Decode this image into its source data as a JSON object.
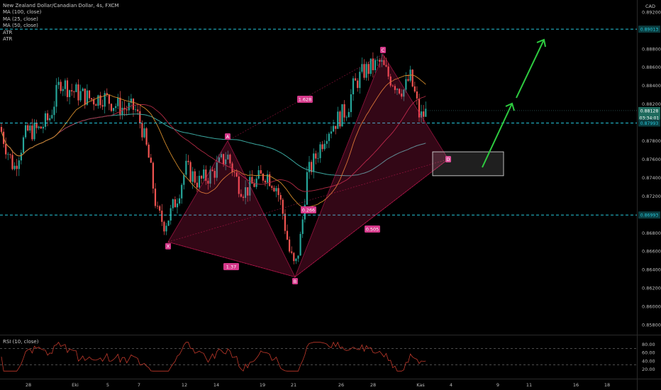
{
  "header": {
    "symbol_line": "New Zealand Dollar/Canadian Dollar, 4s, FXCM",
    "indicators": [
      "MA (100, close)",
      "MA (25, close)",
      "MA (50, close)",
      "ATR",
      "ATR"
    ],
    "currency": "CAD",
    "rsi_label": "RSI (10, close)"
  },
  "price_axis": {
    "labels": [
      "0.89200",
      "0.88800",
      "0.88600",
      "0.88400",
      "0.88200",
      "0.87800",
      "0.87600",
      "0.87400",
      "0.87200",
      "0.86800",
      "0.86600",
      "0.86400",
      "0.86200",
      "0.86000",
      "0.85800"
    ],
    "badges": {
      "upper_line": "0.89013",
      "current": "0.88128",
      "countdown": "03:34:01",
      "mid_line": "0.87993",
      "lower_line": "0.86993"
    }
  },
  "rsi_axis": {
    "labels": [
      "80.00",
      "60.00",
      "40.00",
      "20.00"
    ]
  },
  "time_axis": {
    "labels": [
      "28",
      "Eki",
      "5",
      "7",
      "12",
      "14",
      "19",
      "21",
      "26",
      "28",
      "Kas",
      "4",
      "9",
      "11",
      "16",
      "18"
    ]
  },
  "pattern": {
    "points": {
      "X": "X",
      "A": "A",
      "B": "B",
      "C": "C",
      "D": "D"
    },
    "ratios": {
      "xb": "1.37",
      "ab": "0.266",
      "bc": "1.628",
      "bd": "0.505"
    }
  },
  "colors": {
    "background": "#000000",
    "bull_candle": "#26a69a",
    "bear_candle": "#ef5350",
    "pattern_fill": "#e91e63",
    "label_bg": "#d5388a",
    "support_line": "#26c6da",
    "arrow": "#2ecc40",
    "ma100": "#3ba8a0",
    "ma25": "#d28a2a",
    "ma50": "#b02a44",
    "rsi_line": "#c0392b"
  },
  "chart_data": {
    "type": "candlestick",
    "title": "New Zealand Dollar/Canadian Dollar, 4s, FXCM",
    "ylim": [
      0.857,
      0.8933
    ],
    "horizontal_levels": [
      0.89013,
      0.87993,
      0.86993
    ],
    "current_price": 0.88128,
    "harmonic_pattern": {
      "X": 0.867,
      "A": 0.878,
      "B": 0.8632,
      "C": 0.8874,
      "D": 0.876,
      "ratios": {
        "XB": 1.37,
        "AB": 0.266,
        "BC": 1.628,
        "BD": 0.505
      }
    },
    "target_zone": [
      0.8742,
      0.8768
    ],
    "rsi": {
      "period": 10,
      "levels": [
        70,
        30
      ],
      "ylim": [
        0,
        100
      ]
    }
  }
}
